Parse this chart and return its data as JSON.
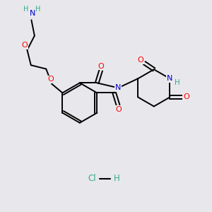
{
  "background_color": "#e8e8ec",
  "bond_color": "#000000",
  "atom_colors": {
    "O": "#ff0000",
    "N": "#0000cc",
    "H": "#33aa88",
    "Cl": "#33aa88"
  },
  "fig_width": 3.0,
  "fig_height": 3.0,
  "dpi": 100
}
